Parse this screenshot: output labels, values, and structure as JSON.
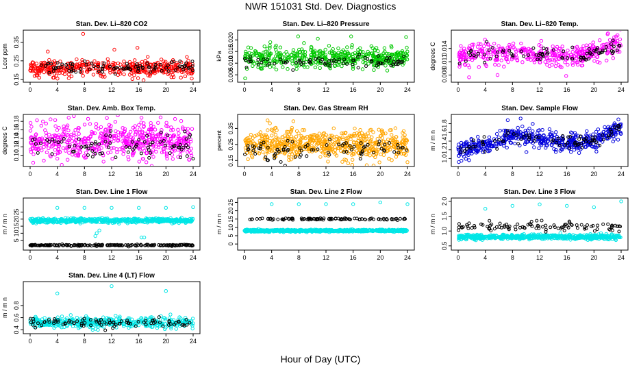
{
  "title": "NWR  151031  Std. Dev. Diagnostics",
  "xlabel": "Hour of Day (UTC)",
  "chart_data": [
    {
      "type": "scatter",
      "title": "Stan. Dev. Li–820 CO2",
      "ylabel": "Lcor ppm",
      "xlim": [
        0,
        24
      ],
      "ylim": [
        0.15,
        0.4
      ],
      "xticks": [
        0,
        4,
        8,
        12,
        16,
        20,
        24
      ],
      "yticks": [
        0.15,
        0.25,
        0.35
      ],
      "ytick_labels": [
        "0.15",
        "0.25",
        "0.35"
      ],
      "color": "#ff0000",
      "series": [
        {
          "name": "colored",
          "count": 420,
          "mean": 0.21,
          "spread": 0.022,
          "outliers": [
            [
              7.8,
              0.395
            ],
            [
              2.6,
              0.3
            ],
            [
              12.4,
              0.31
            ],
            [
              15.8,
              0.32
            ],
            [
              23.8,
              0.155
            ],
            [
              3.4,
              0.16
            ],
            [
              10.4,
              0.17
            ]
          ]
        },
        {
          "name": "black",
          "count": 90,
          "mean": 0.215,
          "spread": 0.015,
          "outliers": []
        }
      ]
    },
    {
      "type": "scatter",
      "title": "Stan. Dev. Li–820 Pressure",
      "ylabel": "kPa",
      "xlim": [
        0,
        24
      ],
      "ylim": [
        0.003,
        0.023
      ],
      "xticks": [
        0,
        4,
        8,
        12,
        16,
        20,
        24
      ],
      "yticks": [
        0.005,
        0.01,
        0.015,
        0.02
      ],
      "ytick_labels": [
        "0.005",
        "0.010",
        "0.015",
        "0.020"
      ],
      "color": "#00c800",
      "series": [
        {
          "name": "colored",
          "count": 500,
          "mean": 0.0125,
          "spread": 0.0022,
          "outliers": [
            [
              7.9,
              0.0215
            ],
            [
              10.8,
              0.0205
            ],
            [
              15.7,
              0.0215
            ],
            [
              23.8,
              0.0212
            ],
            [
              0.1,
              0.0035
            ],
            [
              3.8,
              0.019
            ]
          ]
        },
        {
          "name": "black",
          "count": 80,
          "mean": 0.0105,
          "spread": 0.0012,
          "outliers": []
        }
      ]
    },
    {
      "type": "scatter",
      "title": "Stan. Dev. Li–820 Temp.",
      "ylabel": "degrees C",
      "xlim": [
        0,
        24
      ],
      "ylim": [
        0.007,
        0.0175
      ],
      "xticks": [
        0,
        4,
        8,
        12,
        16,
        20,
        24
      ],
      "yticks": [
        0.008,
        0.011,
        0.014
      ],
      "ytick_labels": [
        "0.008",
        "0.011",
        "0.014"
      ],
      "color": "#ff00ff",
      "trend": [
        [
          0,
          0.0125
        ],
        [
          6,
          0.013
        ],
        [
          12,
          0.0128
        ],
        [
          16,
          0.0118
        ],
        [
          20,
          0.0132
        ],
        [
          24,
          0.015
        ]
      ],
      "series": [
        {
          "name": "colored",
          "count": 420,
          "mean": 0.0125,
          "spread": 0.0012,
          "outliers": [
            [
              22.0,
              0.0172
            ],
            [
              1.6,
              0.0075
            ],
            [
              5.8,
              0.008
            ],
            [
              15.9,
              0.0078
            ]
          ]
        },
        {
          "name": "black",
          "count": 80,
          "mean": 0.0128,
          "spread": 0.001,
          "outliers": [
            [
              4.2,
              0.0155
            ]
          ]
        }
      ]
    },
    {
      "type": "scatter",
      "title": "Stan. Dev. Amb. Box Temp.",
      "ylabel": "degrees C",
      "xlim": [
        0,
        24
      ],
      "ylim": [
        0.08,
        0.19
      ],
      "xticks": [
        0,
        4,
        8,
        12,
        16,
        20,
        24
      ],
      "yticks": [
        0.1,
        0.12,
        0.14,
        0.16,
        0.18
      ],
      "ytick_labels": [
        "0.10",
        "0.12",
        "0.14",
        "0.16",
        "0.18"
      ],
      "color": "#ff00ff",
      "series": [
        {
          "name": "colored",
          "count": 560,
          "mean": 0.135,
          "spread": 0.022,
          "outliers": [
            [
              3.0,
              0.185
            ],
            [
              11.3,
              0.188
            ],
            [
              14.5,
              0.09
            ],
            [
              4.0,
              0.092
            ]
          ]
        },
        {
          "name": "black",
          "count": 80,
          "mean": 0.125,
          "spread": 0.014,
          "outliers": [
            [
              24.0,
              0.092
            ]
          ]
        }
      ]
    },
    {
      "type": "scatter",
      "title": "Stan. Dev. Gas Stream RH",
      "ylabel": "percent",
      "xlim": [
        0,
        24
      ],
      "ylim": [
        0.13,
        0.42
      ],
      "xticks": [
        0,
        4,
        8,
        12,
        16,
        20,
        24
      ],
      "yticks": [
        0.15,
        0.25,
        0.35
      ],
      "ytick_labels": [
        "0.15",
        "0.25",
        "0.35"
      ],
      "color": "#ffa500",
      "series": [
        {
          "name": "colored",
          "count": 620,
          "mean": 0.25,
          "spread": 0.045,
          "outliers": [
            [
              3.4,
              0.4
            ],
            [
              7.2,
              0.395
            ],
            [
              21.6,
              0.34
            ],
            [
              24.0,
              0.14
            ]
          ]
        },
        {
          "name": "black",
          "count": 80,
          "mean": 0.22,
          "spread": 0.03,
          "outliers": []
        }
      ]
    },
    {
      "type": "scatter",
      "title": "Stan. Dev. Sample Flow",
      "ylabel": "m / m n",
      "xlim": [
        0,
        24
      ],
      "ylim": [
        0.88,
        1.95
      ],
      "xticks": [
        0,
        4,
        8,
        12,
        16,
        20,
        24
      ],
      "yticks": [
        1.0,
        1.2,
        1.4,
        1.6,
        1.8
      ],
      "ytick_labels": [
        "1.0",
        "1.2",
        "1.4",
        "1.6",
        "1.8"
      ],
      "color": "#0000dc",
      "trend": [
        [
          0,
          1.15
        ],
        [
          4,
          1.3
        ],
        [
          8,
          1.55
        ],
        [
          12,
          1.45
        ],
        [
          16,
          1.35
        ],
        [
          20,
          1.4
        ],
        [
          24,
          1.7
        ]
      ],
      "series": [
        {
          "name": "colored",
          "count": 520,
          "mean": 1.4,
          "spread": 0.1,
          "outliers": [
            [
              9.2,
              1.92
            ],
            [
              0.1,
              0.92
            ],
            [
              7.3,
              1.88
            ],
            [
              23.6,
              1.9
            ]
          ]
        },
        {
          "name": "black",
          "count": 80,
          "mean": 1.4,
          "spread": 0.08,
          "outliers": []
        }
      ]
    },
    {
      "type": "scatter",
      "title": "Stan. Dev. Line 1 Flow",
      "ylabel": "m / m n",
      "xlim": [
        0,
        24
      ],
      "ylim": [
        0,
        33
      ],
      "xticks": [
        0,
        4,
        8,
        12,
        16,
        20,
        24
      ],
      "yticks": [
        5,
        10,
        15,
        20,
        25
      ],
      "ytick_labels": [
        "5",
        "10",
        "15",
        "20",
        "25"
      ],
      "color": "#00e6e6",
      "series": [
        {
          "name": "colored",
          "count": 560,
          "mean": 19,
          "spread": 0.8,
          "outliers": [
            [
              4.0,
              28
            ],
            [
              8.0,
              28
            ],
            [
              12.0,
              28
            ],
            [
              16.0,
              28
            ],
            [
              20.0,
              28
            ],
            [
              24.0,
              28.5
            ],
            [
              9.6,
              8
            ],
            [
              9.8,
              10
            ],
            [
              10.2,
              12
            ],
            [
              16.4,
              7
            ],
            [
              16.8,
              7
            ]
          ]
        },
        {
          "name": "black",
          "count": 200,
          "mean": 1.5,
          "spread": 0.25,
          "outliers": []
        }
      ]
    },
    {
      "type": "scatter",
      "title": "Stan. Dev. Line 2 Flow",
      "ylabel": "m / m n",
      "xlim": [
        0,
        24
      ],
      "ylim": [
        -2,
        26
      ],
      "xticks": [
        0,
        4,
        8,
        12,
        16,
        20,
        24
      ],
      "yticks": [
        0,
        5,
        10,
        15,
        20,
        25
      ],
      "ytick_labels": [
        "0",
        "5",
        "10",
        "15",
        "20",
        "25"
      ],
      "color": "#00e6e6",
      "series": [
        {
          "name": "colored",
          "count": 720,
          "mean": 8,
          "spread": 0.3,
          "outliers": [
            [
              4.0,
              24
            ],
            [
              8.0,
              24
            ],
            [
              12.0,
              24
            ],
            [
              16.0,
              24
            ],
            [
              20.0,
              25
            ],
            [
              24.0,
              24
            ]
          ]
        },
        {
          "name": "black",
          "count": 100,
          "mean": 15,
          "spread": 0.25,
          "outliers": []
        }
      ]
    },
    {
      "type": "scatter",
      "title": "Stan. Dev. Line 3 Flow",
      "ylabel": "m / m n",
      "xlim": [
        0,
        24
      ],
      "ylim": [
        0.45,
        2.02
      ],
      "xticks": [
        0,
        4,
        8,
        12,
        16,
        20,
        24
      ],
      "yticks": [
        0.5,
        1.0,
        1.5,
        2.0
      ],
      "ytick_labels": [
        "0.5",
        "1.0",
        "1.5",
        "2.0"
      ],
      "color": "#00e6e6",
      "series": [
        {
          "name": "colored",
          "count": 620,
          "mean": 0.8,
          "spread": 0.04,
          "outliers": [
            [
              4.0,
              1.75
            ],
            [
              8.0,
              1.85
            ],
            [
              12.0,
              1.9
            ],
            [
              16.0,
              1.85
            ],
            [
              20.0,
              1.8
            ],
            [
              24.0,
              2.0
            ]
          ]
        },
        {
          "name": "black",
          "count": 100,
          "mean": 1.15,
          "spread": 0.07,
          "outliers": []
        }
      ]
    },
    {
      "type": "scatter",
      "title": "Stan. Dev. Line 4 (LT) Flow",
      "ylabel": "m / m n",
      "xlim": [
        0,
        24
      ],
      "ylim": [
        0.38,
        1.15
      ],
      "xticks": [
        0,
        4,
        8,
        12,
        16,
        20,
        24
      ],
      "yticks": [
        0.4,
        0.6,
        0.8
      ],
      "ytick_labels": [
        "0.4",
        "0.6",
        "0.8"
      ],
      "color": "#00e6e6",
      "series": [
        {
          "name": "colored",
          "count": 420,
          "mean": 0.52,
          "spread": 0.04,
          "outliers": [
            [
              4.0,
              1.0
            ],
            [
              12.0,
              1.12
            ],
            [
              20.0,
              1.04
            ]
          ]
        },
        {
          "name": "black",
          "count": 90,
          "mean": 0.52,
          "spread": 0.035,
          "outliers": []
        }
      ]
    }
  ]
}
